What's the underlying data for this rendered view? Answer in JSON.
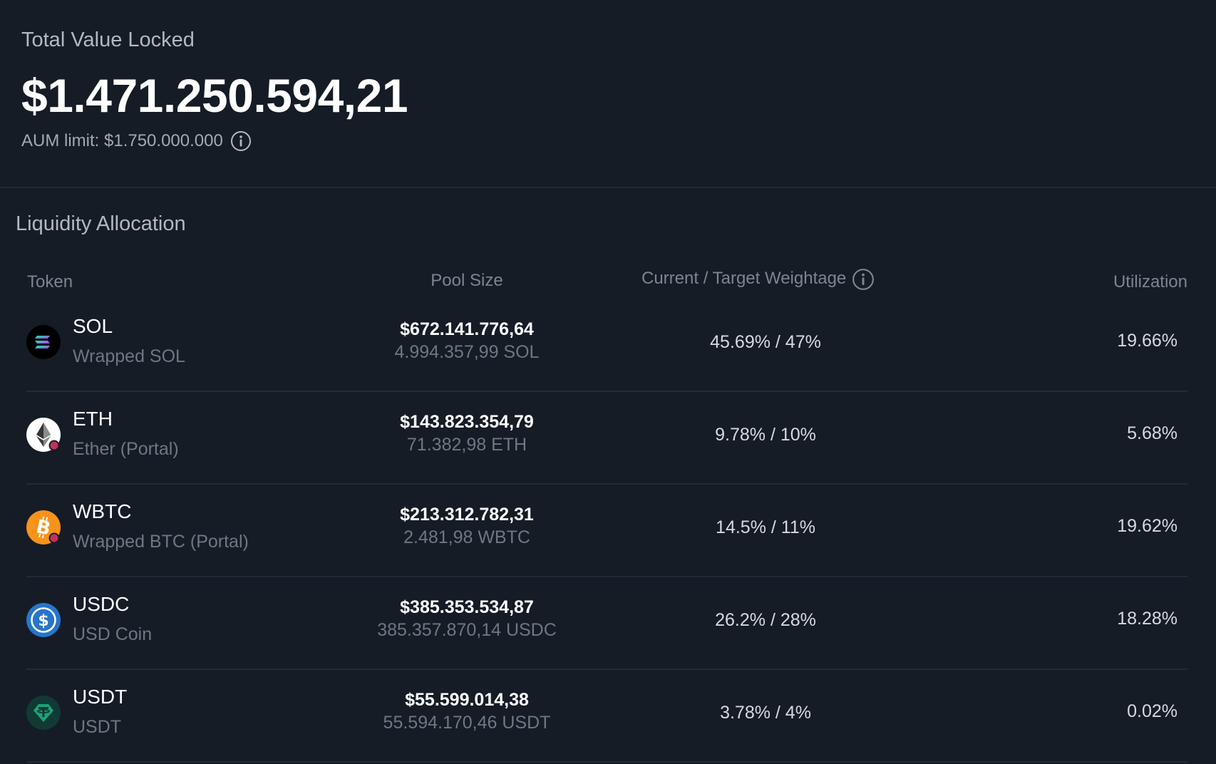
{
  "tvl": {
    "label": "Total Value Locked",
    "value": "$1.471.250.594,21",
    "aum_limit": "AUM limit: $1.750.000.000"
  },
  "allocation": {
    "title": "Liquidity Allocation",
    "columns": {
      "token": "Token",
      "pool_size": "Pool Size",
      "weightage": "Current / Target Weightage",
      "utilization": "Utilization"
    },
    "rows": [
      {
        "symbol": "SOL",
        "name": "Wrapped SOL",
        "icon": "sol-icon",
        "pool_usd": "$672.141.776,64",
        "pool_amount": "4.994.357,99 SOL",
        "weightage": "45.69% / 47%",
        "utilization": "19.66%"
      },
      {
        "symbol": "ETH",
        "name": "Ether (Portal)",
        "icon": "eth-icon",
        "pool_usd": "$143.823.354,79",
        "pool_amount": "71.382,98 ETH",
        "weightage": "9.78% / 10%",
        "utilization": "5.68%"
      },
      {
        "symbol": "WBTC",
        "name": "Wrapped BTC (Portal)",
        "icon": "wbtc-icon",
        "pool_usd": "$213.312.782,31",
        "pool_amount": "2.481,98 WBTC",
        "weightage": "14.5% / 11%",
        "utilization": "19.62%"
      },
      {
        "symbol": "USDC",
        "name": "USD Coin",
        "icon": "usdc-icon",
        "pool_usd": "$385.353.534,87",
        "pool_amount": "385.357.870,14 USDC",
        "weightage": "26.2% / 28%",
        "utilization": "18.28%"
      },
      {
        "symbol": "USDT",
        "name": "USDT",
        "icon": "usdt-icon",
        "pool_usd": "$55.599.014,38",
        "pool_amount": "55.594.170,46 USDT",
        "weightage": "3.78% / 4%",
        "utilization": "0.02%"
      }
    ]
  },
  "colors": {
    "background": "#151c26",
    "sol_bg": "#000000",
    "eth_bg": "#ffffff",
    "wbtc_bg": "#f7931a",
    "usdc_bg": "#2775ca",
    "usdt_bg": "#123a34",
    "portal_badge": "#c2315a"
  }
}
